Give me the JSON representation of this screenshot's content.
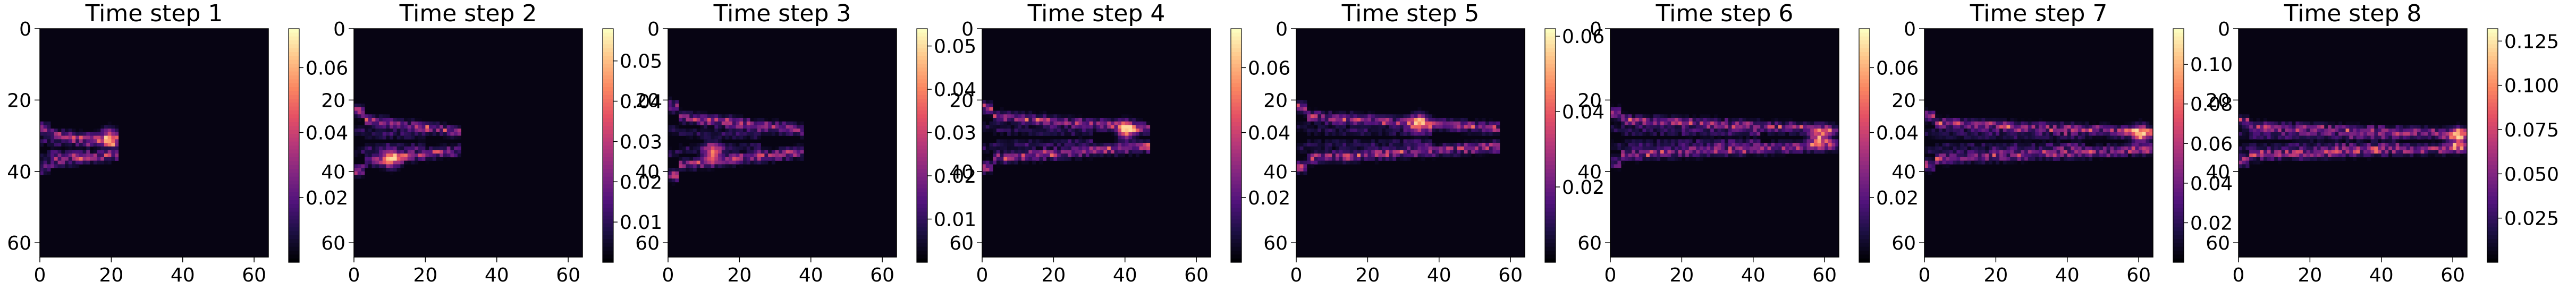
{
  "chart_data": [
    {
      "type": "heatmap",
      "title": "Time step 1",
      "x_ticks": [
        "0",
        "20",
        "40",
        "60"
      ],
      "y_ticks": [
        "0",
        "20",
        "40",
        "60"
      ],
      "xlim": [
        0,
        64
      ],
      "ylim": [
        64,
        0
      ],
      "colormap": "magma",
      "colorbar_range": [
        0.0,
        0.072
      ],
      "colorbar_ticks": [
        "0.02",
        "0.04",
        "0.06"
      ],
      "colorbar_tick_values": [
        0.02,
        0.04,
        0.06
      ],
      "shape": {
        "center": [
          33,
          29
        ],
        "length": 20,
        "thickness": 4
      },
      "hotspot": [
        19,
        30
      ],
      "peak": 0.072
    },
    {
      "type": "heatmap",
      "title": "Time step 2",
      "x_ticks": [
        "0",
        "20",
        "40",
        "60"
      ],
      "y_ticks": [
        "0",
        "20",
        "40",
        "60"
      ],
      "xlim": [
        0,
        64
      ],
      "ylim": [
        64,
        0
      ],
      "colormap": "magma",
      "colorbar_range": [
        0.0,
        0.058
      ],
      "colorbar_ticks": [
        "0.01",
        "0.02",
        "0.03",
        "0.04",
        "0.05"
      ],
      "colorbar_tick_values": [
        0.01,
        0.02,
        0.03,
        0.04,
        0.05
      ],
      "shape": {
        "center": [
          31,
          32
        ],
        "length": 28,
        "thickness": 6
      },
      "hotspot": [
        10,
        36
      ],
      "peak": 0.058
    },
    {
      "type": "heatmap",
      "title": "Time step 3",
      "x_ticks": [
        "0",
        "20",
        "40",
        "60"
      ],
      "y_ticks": [
        "0",
        "20",
        "40",
        "60"
      ],
      "xlim": [
        0,
        64
      ],
      "ylim": [
        64,
        0
      ],
      "colormap": "magma",
      "colorbar_range": [
        0.0,
        0.054
      ],
      "colorbar_ticks": [
        "0.01",
        "0.02",
        "0.03",
        "0.04",
        "0.05"
      ],
      "colorbar_tick_values": [
        0.01,
        0.02,
        0.03,
        0.04,
        0.05
      ],
      "shape": {
        "center": [
          31,
          34
        ],
        "length": 36,
        "thickness": 7
      },
      "hotspot": [
        12,
        34
      ],
      "peak": 0.054
    },
    {
      "type": "heatmap",
      "title": "Time step 4",
      "x_ticks": [
        "0",
        "20",
        "40",
        "60"
      ],
      "y_ticks": [
        "0",
        "20",
        "40",
        "60"
      ],
      "xlim": [
        0,
        64
      ],
      "ylim": [
        64,
        0
      ],
      "colormap": "magma",
      "colorbar_range": [
        0.0,
        0.072
      ],
      "colorbar_ticks": [
        "0.02",
        "0.04",
        "0.06"
      ],
      "colorbar_tick_values": [
        0.02,
        0.04,
        0.06
      ],
      "shape": {
        "center": [
          30,
          40
        ],
        "length": 44,
        "thickness": 6
      },
      "hotspot": [
        40,
        28
      ],
      "peak": 0.072
    },
    {
      "type": "heatmap",
      "title": "Time step 5",
      "x_ticks": [
        "0",
        "20",
        "40",
        "60"
      ],
      "y_ticks": [
        "0",
        "20",
        "40",
        "60"
      ],
      "xlim": [
        0,
        64
      ],
      "ylim": [
        64,
        0
      ],
      "colormap": "magma",
      "colorbar_range": [
        0.0,
        0.062
      ],
      "colorbar_ticks": [
        "0.02",
        "0.04",
        "0.06"
      ],
      "colorbar_tick_values": [
        0.02,
        0.04,
        0.06
      ],
      "shape": {
        "center": [
          30,
          46
        ],
        "length": 54,
        "thickness": 6
      },
      "hotspot": [
        34,
        26
      ],
      "peak": 0.062
    },
    {
      "type": "heatmap",
      "title": "Time step 6",
      "x_ticks": [
        "0",
        "20",
        "40",
        "60"
      ],
      "y_ticks": [
        "0",
        "20",
        "40",
        "60"
      ],
      "xlim": [
        0,
        64
      ],
      "ylim": [
        64,
        0
      ],
      "colormap": "magma",
      "colorbar_range": [
        0.0,
        0.072
      ],
      "colorbar_ticks": [
        "0.02",
        "0.04",
        "0.06"
      ],
      "colorbar_tick_values": [
        0.02,
        0.04,
        0.06
      ],
      "shape": {
        "center": [
          30,
          52
        ],
        "length": 60,
        "thickness": 5
      },
      "hotspot": [
        58,
        30
      ],
      "peak": 0.072
    },
    {
      "type": "heatmap",
      "title": "Time step 7",
      "x_ticks": [
        "0",
        "20",
        "40",
        "60"
      ],
      "y_ticks": [
        "0",
        "20",
        "40",
        "60"
      ],
      "xlim": [
        0,
        64
      ],
      "ylim": [
        64,
        0
      ],
      "colormap": "magma",
      "colorbar_range": [
        0.0,
        0.118
      ],
      "colorbar_ticks": [
        "0.02",
        "0.04",
        "0.06",
        "0.08",
        "0.10"
      ],
      "colorbar_tick_values": [
        0.02,
        0.04,
        0.06,
        0.08,
        0.1
      ],
      "shape": {
        "center": [
          31,
          56
        ],
        "length": 64,
        "thickness": 5
      },
      "hotspot": [
        60,
        29
      ],
      "peak": 0.118
    },
    {
      "type": "heatmap",
      "title": "Time step 8",
      "x_ticks": [
        "0",
        "20",
        "40",
        "60"
      ],
      "y_ticks": [
        "0",
        "20",
        "40",
        "60"
      ],
      "xlim": [
        0,
        64
      ],
      "ylim": [
        64,
        0
      ],
      "colormap": "magma",
      "colorbar_range": [
        0.0,
        0.132
      ],
      "colorbar_ticks": [
        "0.025",
        "0.050",
        "0.075",
        "0.100",
        "0.125"
      ],
      "colorbar_tick_values": [
        0.025,
        0.05,
        0.075,
        0.1,
        0.125
      ],
      "shape": {
        "center": [
          31,
          58
        ],
        "length": 64,
        "thickness": 4
      },
      "hotspot": [
        61,
        30
      ],
      "peak": 0.132
    }
  ]
}
